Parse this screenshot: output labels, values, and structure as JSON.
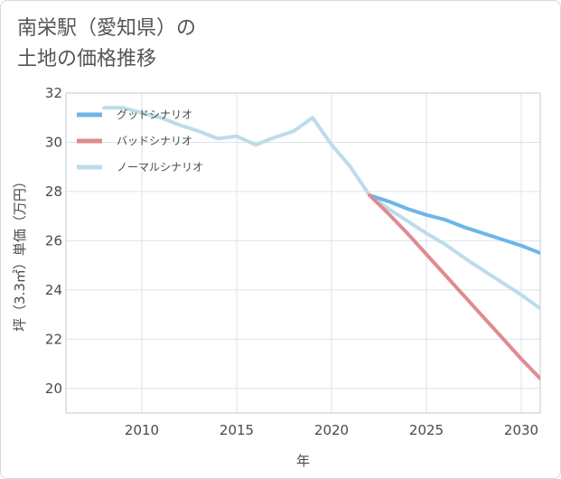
{
  "title": {
    "line1": "南栄駅（愛知県）の",
    "line2": "土地の価格推移"
  },
  "chart_data": {
    "type": "line",
    "xlabel": "年",
    "ylabel": "坪（3.3㎡）単価（万円）",
    "xlim": [
      2006,
      2031
    ],
    "ylim": [
      19,
      32
    ],
    "x_ticks": [
      "2010",
      "2015",
      "2020",
      "2025",
      "2030"
    ],
    "y_ticks": [
      "20",
      "22",
      "24",
      "26",
      "28",
      "30",
      "32"
    ],
    "grid": true,
    "legend_position": "top-left",
    "series": [
      {
        "name": "グッドシナリオ",
        "color": "#6cb6e8",
        "x": [
          2022,
          2023,
          2024,
          2025,
          2026,
          2027,
          2028,
          2029,
          2030,
          2031
        ],
        "y": [
          27.85,
          27.6,
          27.3,
          27.05,
          26.85,
          26.55,
          26.3,
          26.05,
          25.8,
          25.5
        ]
      },
      {
        "name": "バッドシナリオ",
        "color": "#e08a91",
        "x": [
          2022,
          2023,
          2024,
          2025,
          2026,
          2027,
          2028,
          2029,
          2030,
          2031
        ],
        "y": [
          27.85,
          27.1,
          26.3,
          25.45,
          24.6,
          23.75,
          22.9,
          22.05,
          21.2,
          20.4
        ]
      },
      {
        "name": "ノーマルシナリオ",
        "color": "#bcdcea",
        "x": [
          2008,
          2009,
          2010,
          2011,
          2012,
          2013,
          2014,
          2015,
          2016,
          2017,
          2018,
          2019,
          2020,
          2021,
          2022,
          2023,
          2024,
          2025,
          2026,
          2027,
          2028,
          2029,
          2030,
          2031
        ],
        "y": [
          31.4,
          31.4,
          31.2,
          31.0,
          30.7,
          30.45,
          30.15,
          30.25,
          29.9,
          30.2,
          30.45,
          31.0,
          29.9,
          29.0,
          27.85,
          27.3,
          26.8,
          26.3,
          25.85,
          25.3,
          24.8,
          24.3,
          23.8,
          23.25
        ]
      }
    ]
  }
}
